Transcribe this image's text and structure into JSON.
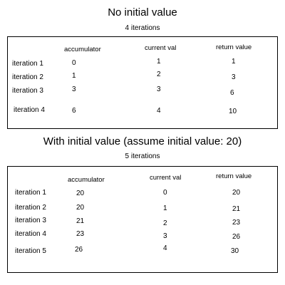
{
  "no_initial": {
    "title": "No initial value",
    "subtitle": "4 iterations",
    "headers": {
      "accumulator": "accumulator",
      "current": "current val",
      "return": "return value"
    },
    "rows": [
      {
        "label": "iteration 1",
        "accumulator": "0",
        "current": "1",
        "return": "1"
      },
      {
        "label": "iteration 2",
        "accumulator": "1",
        "current": "2",
        "return": "3"
      },
      {
        "label": "iteration 3",
        "accumulator": "3",
        "current": "3",
        "return": "6"
      },
      {
        "label": "iteration 4",
        "accumulator": "6",
        "current": "4",
        "return": "10"
      }
    ]
  },
  "with_initial": {
    "title": "With initial value (assume initial value: 20)",
    "subtitle": "5 iterations",
    "headers": {
      "accumulator": "accumulator",
      "current": "current val",
      "return": "return value"
    },
    "rows": [
      {
        "label": "iteration 1",
        "accumulator": "20",
        "current": "0",
        "return": "20"
      },
      {
        "label": "iteration 2",
        "accumulator": "20",
        "current": "1",
        "return": "21"
      },
      {
        "label": "iteration 3",
        "accumulator": "21",
        "current": "2",
        "return": "23"
      },
      {
        "label": "iteration 4",
        "accumulator": "23",
        "current": "3",
        "return": "26"
      },
      {
        "label": "iteration 5",
        "accumulator": "26",
        "current": "4",
        "return": "30"
      }
    ]
  }
}
